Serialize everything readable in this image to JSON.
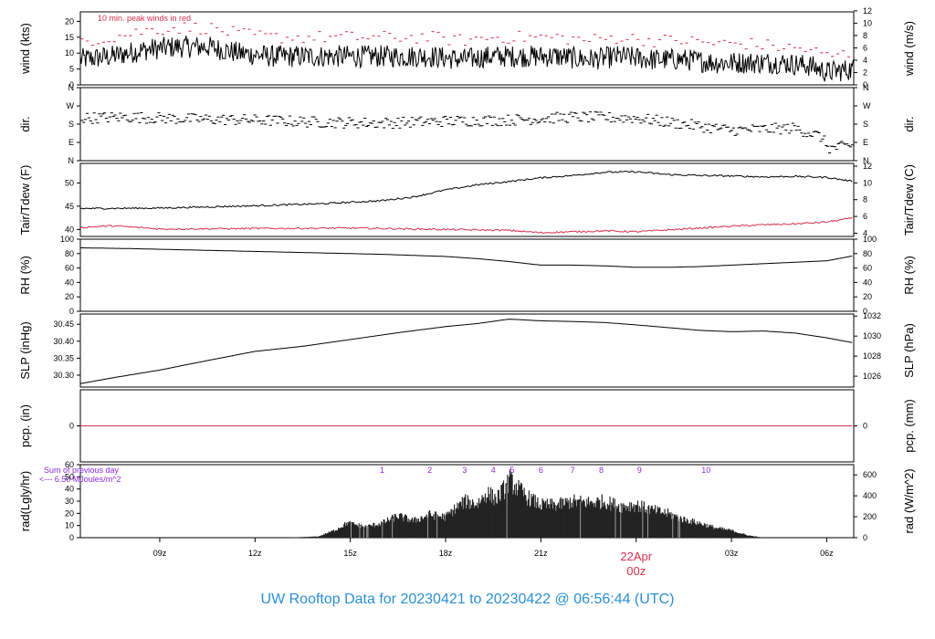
{
  "footer": {
    "title": "UW Rooftop Data for 20230421  to  20230422 @ 06:56:44  (UTC)"
  },
  "chart_data": {
    "type": "line",
    "time_axis": {
      "range_hours": [
        6.5,
        30.85
      ],
      "ticks": [
        {
          "t": 9,
          "label": "09z"
        },
        {
          "t": 12,
          "label": "12z"
        },
        {
          "t": 15,
          "label": "15z"
        },
        {
          "t": 18,
          "label": "18z"
        },
        {
          "t": 21,
          "label": "21z"
        },
        {
          "t": 24,
          "label": "00z"
        },
        {
          "t": 27,
          "label": "03z"
        },
        {
          "t": 30,
          "label": "06z"
        }
      ],
      "date_label": "22Apr",
      "date_label_t": 24,
      "date_color": "#d6304f"
    },
    "colors": {
      "line": "#000000",
      "red": "#d6304f",
      "purple": "#8a2be2",
      "footer": "#2a8fd0"
    },
    "panels": [
      {
        "id": "wind",
        "ylabel": "wind (kts)",
        "ylabel_right": "wind (m/s)",
        "ylim": [
          0,
          23
        ],
        "yticks": [
          "0",
          "5",
          "10",
          "15",
          "20"
        ],
        "yticks_vals": [
          0,
          5,
          10,
          15,
          20
        ],
        "right_ticks": [
          "0",
          "2",
          "4",
          "6",
          "8",
          "10",
          "12"
        ],
        "right_ticks_vals": [
          0,
          3.89,
          7.78,
          11.66,
          15.55,
          19.44,
          23.33
        ],
        "annotation": "10 min. peak winds in red",
        "series": [
          {
            "name": "wind speed",
            "color": "#000000",
            "x": [
              6.5,
              7.5,
              8.5,
              9.5,
              10.5,
              11.5,
              12.5,
              13.5,
              14.5,
              15.5,
              16.5,
              17.5,
              18.5,
              19.5,
              20.5,
              21.5,
              22.5,
              23.5,
              24.5,
              25.5,
              26.5,
              27.5,
              28.5,
              29.5,
              30.0,
              30.85
            ],
            "y": [
              8,
              9,
              11,
              12,
              12,
              10,
              9,
              9,
              9,
              9,
              9,
              9,
              8,
              9,
              9,
              9,
              8,
              9,
              8,
              8,
              7,
              7,
              7,
              6,
              4,
              5
            ]
          },
          {
            "name": "peak wind",
            "color": "#d6304f",
            "style": "dashes",
            "x": [
              6.5,
              7.5,
              8.5,
              9.5,
              10.5,
              11.5,
              12.5,
              13.5,
              14.5,
              15.5,
              16.5,
              17.5,
              18.5,
              19.5,
              20.5,
              21.5,
              22.5,
              23.5,
              24.5,
              25.5,
              26.5,
              27.5,
              28.5,
              29.5,
              30.0,
              30.85
            ],
            "y": [
              14,
              15,
              17,
              18,
              18,
              16,
              15,
              15,
              15,
              15,
              15,
              15,
              14,
              15,
              15,
              15,
              14,
              15,
              14,
              14,
              13,
              13,
              12,
              11,
              9,
              10
            ]
          }
        ]
      },
      {
        "id": "dir",
        "ylabel": "dir.",
        "ylabel_right": "dir.",
        "ylim": [
          0,
          360
        ],
        "yticks": [
          "N",
          "E",
          "S",
          "W",
          "N"
        ],
        "yticks_vals": [
          0,
          90,
          180,
          270,
          360
        ],
        "right_ticks": [
          "N",
          "E",
          "S",
          "W",
          "N"
        ],
        "right_ticks_vals": [
          0,
          90,
          180,
          270,
          360
        ],
        "series": [
          {
            "name": "direction",
            "color": "#000000",
            "style": "dashes",
            "x": [
              6.5,
              8,
              10,
              12,
              14,
              16,
              18,
              20,
              22,
              24,
              26,
              27,
              28,
              29,
              29.8,
              30.1,
              30.85
            ],
            "y": [
              210,
              215,
              205,
              200,
              190,
              185,
              195,
              200,
              215,
              210,
              170,
              150,
              155,
              160,
              120,
              60,
              75
            ]
          }
        ]
      },
      {
        "id": "temp",
        "ylabel": "Tair/Tdew (F)",
        "ylabel_right": "Tair/Tdew (C)",
        "ylim": [
          38.5,
          54.2
        ],
        "yticks": [
          "40",
          "45",
          "50"
        ],
        "yticks_vals": [
          40,
          45,
          50
        ],
        "right_ticks": [
          "4",
          "6",
          "8",
          "10",
          "12"
        ],
        "right_ticks_vals": [
          39.2,
          42.8,
          46.4,
          50,
          53.6
        ],
        "series": [
          {
            "name": "Tair",
            "color": "#000000",
            "x": [
              6.5,
              9,
              12,
              14,
              16,
              17,
              18,
              19,
              20,
              21,
              22,
              23,
              24,
              25,
              26,
              27,
              28,
              29,
              30,
              30.85
            ],
            "y": [
              44.5,
              44.6,
              45.1,
              45.5,
              46.2,
              47,
              48.5,
              49.6,
              50.3,
              51.1,
              51.6,
              52.3,
              52.4,
              51.8,
              51.6,
              51.5,
              51.3,
              51.4,
              51.2,
              50.3
            ]
          },
          {
            "name": "Tdew",
            "color": "#d6304f",
            "x": [
              6.5,
              7.5,
              9,
              12,
              15,
              18,
              20,
              21,
              22,
              23,
              24,
              25,
              26,
              27,
              28,
              29,
              30,
              30.85
            ],
            "y": [
              40.4,
              40.8,
              40.1,
              40.2,
              40.3,
              40.0,
              39.8,
              39.3,
              39.5,
              39.7,
              39.5,
              39.9,
              40.3,
              40.7,
              41.0,
              41.2,
              41.6,
              42.5
            ]
          }
        ]
      },
      {
        "id": "rh",
        "ylabel": "RH (%)",
        "ylabel_right": "RH (%)",
        "ylim": [
          0,
          100
        ],
        "yticks": [
          "0",
          "20",
          "40",
          "60",
          "80",
          "100"
        ],
        "yticks_vals": [
          0,
          20,
          40,
          60,
          80,
          100
        ],
        "right_ticks": [
          "0",
          "20",
          "40",
          "60",
          "80",
          "100"
        ],
        "right_ticks_vals": [
          0,
          20,
          40,
          60,
          80,
          100
        ],
        "series": [
          {
            "name": "RH",
            "color": "#000000",
            "x": [
              6.5,
              8,
              10,
              12,
              14,
              16,
              18,
              19,
              20,
              21,
              22,
              23,
              24,
              25,
              26,
              27,
              28,
              29,
              30,
              30.85
            ],
            "y": [
              88,
              87,
              85,
              83,
              81,
              79,
              76,
              73,
              69,
              64,
              64,
              63,
              61,
              61,
              62,
              64,
              66,
              68,
              70,
              77
            ]
          }
        ]
      },
      {
        "id": "slp",
        "ylabel": "SLP (inHg)",
        "ylabel_right": "SLP (hPa)",
        "ylim": [
          30.265,
          30.48
        ],
        "yticks": [
          "30.30",
          "30.35",
          "30.40",
          "30.45"
        ],
        "yticks_vals": [
          30.3,
          30.35,
          30.4,
          30.45
        ],
        "right_ticks": [
          "1026",
          "1028",
          "1030",
          "1032"
        ],
        "right_ticks_vals": [
          30.297,
          30.356,
          30.415,
          30.474
        ],
        "series": [
          {
            "name": "SLP",
            "color": "#000000",
            "x": [
              6.5,
              7.5,
              9,
              10.5,
              12,
              13.5,
              15,
              16.5,
              18,
              19,
              20,
              21,
              22,
              23,
              24,
              25,
              26,
              27,
              28,
              29,
              30,
              30.85
            ],
            "y": [
              30.275,
              30.292,
              30.315,
              30.343,
              30.37,
              30.385,
              30.405,
              30.425,
              30.443,
              30.452,
              30.465,
              30.46,
              30.458,
              30.455,
              30.448,
              30.44,
              30.432,
              30.428,
              30.43,
              30.424,
              30.41,
              30.395
            ]
          }
        ]
      },
      {
        "id": "pcp",
        "ylabel": "pcp. (in)",
        "ylabel_right": "pcp. (mm)",
        "ylim": [
          -1,
          1
        ],
        "yticks": [
          "0"
        ],
        "yticks_vals": [
          0
        ],
        "right_ticks": [
          "0"
        ],
        "right_ticks_vals": [
          0
        ],
        "series": [
          {
            "name": "precip",
            "color": "#d6304f",
            "x": [
              6.5,
              30.85
            ],
            "y": [
              0,
              0
            ]
          }
        ]
      },
      {
        "id": "rad",
        "ylabel": "rad(Lgly/hr)",
        "ylabel_right": "rad (W/m^2)",
        "ylim": [
          0,
          60
        ],
        "yticks": [
          "0",
          "10",
          "20",
          "30",
          "40",
          "50",
          "60"
        ],
        "yticks_vals": [
          0,
          10,
          20,
          30,
          40,
          50,
          60
        ],
        "right_ticks": [
          "0",
          "200",
          "400",
          "600"
        ],
        "right_ticks_vals": [
          0,
          17.2,
          34.4,
          51.6
        ],
        "annotation_lines": [
          "Sum of previous day",
          "<--- 6.50 MJoules/m^2"
        ],
        "hour_marks": [
          {
            "t": 16,
            "label": "1"
          },
          {
            "t": 17.5,
            "label": "2"
          },
          {
            "t": 18.6,
            "label": "3"
          },
          {
            "t": 19.5,
            "label": "4"
          },
          {
            "t": 20.1,
            "label": "5"
          },
          {
            "t": 21,
            "label": "6"
          },
          {
            "t": 22,
            "label": "7"
          },
          {
            "t": 22.9,
            "label": "8"
          },
          {
            "t": 24.1,
            "label": "9"
          },
          {
            "t": 26.2,
            "label": "10"
          }
        ],
        "series": [
          {
            "name": "radiation",
            "color": "#222222",
            "style": "fill",
            "x": [
              13,
              14,
              14.5,
              14.9,
              15.5,
              16,
              16.5,
              17,
              17.5,
              18,
              18.3,
              18.6,
              19,
              19.3,
              19.6,
              19.9,
              20.0,
              20.3,
              20.6,
              21,
              21.5,
              22,
              22.5,
              23,
              23.5,
              24,
              24.5,
              25,
              25.5,
              26,
              26.5,
              27,
              27.5,
              28
            ],
            "y": [
              0,
              1,
              6,
              12,
              9,
              12,
              18,
              14,
              19,
              17,
              24,
              30,
              28,
              37,
              32,
              42,
              48,
              40,
              33,
              27,
              27,
              30,
              29,
              30,
              26,
              27,
              23,
              20,
              15,
              12,
              8,
              6,
              2,
              0
            ]
          }
        ]
      }
    ]
  }
}
